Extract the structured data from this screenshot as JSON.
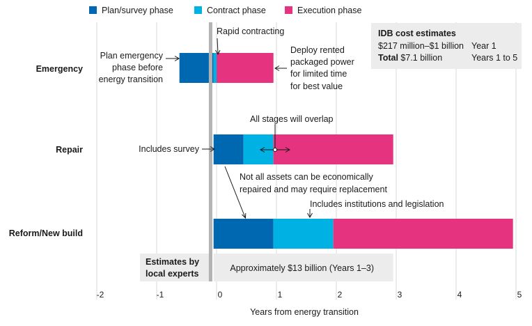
{
  "chart_data": {
    "type": "bar",
    "orientation": "horizontal",
    "stacked": "range",
    "xlabel": "Years from energy transition",
    "xlim": [
      -2.2,
      5.1
    ],
    "ticks": [
      "-2",
      "-1",
      "0",
      "1",
      "2",
      "3",
      "4",
      "5"
    ],
    "grid": true,
    "legend_position": "top",
    "categories": [
      "Emergency",
      "Repair",
      "Reform/New build"
    ],
    "series": [
      {
        "name": "Plan/survey phase",
        "color": "#0067b1",
        "ranges": [
          [
            -0.62,
            -0.05
          ],
          [
            -0.05,
            0.45
          ],
          [
            -0.05,
            0.95
          ]
        ]
      },
      {
        "name": "Contract phase",
        "color": "#00b2e3",
        "ranges": [
          [
            -0.05,
            0.0
          ],
          [
            0.45,
            0.95
          ],
          [
            0.95,
            1.95
          ]
        ]
      },
      {
        "name": "Execution phase",
        "color": "#e6337f",
        "ranges": [
          [
            0.0,
            0.95
          ],
          [
            0.95,
            2.95
          ],
          [
            1.95,
            4.95
          ]
        ]
      }
    ],
    "transition_line_x": -0.1,
    "annotations": {
      "rapid_contracting": "Rapid contracting",
      "plan_emergency": [
        "Plan emergency",
        "phase before",
        "energy transition"
      ],
      "deploy_power": [
        "Deploy rented",
        "packaged power",
        "for limited time",
        "for best value"
      ],
      "all_overlap": "All stages will overlap",
      "includes_survey": "Includes survey",
      "not_all_assets": [
        "Not all assets can be economically",
        "repaired and may require replacement"
      ],
      "institutions": "Includes institutions and legislation"
    },
    "idb_box": {
      "title": "IDB cost estimates",
      "row1_value": "$217 million–$1 billion",
      "row1_period": "Year 1",
      "row2_label": "Total",
      "row2_value": " $7.1 billion",
      "row2_period": "Years 1 to 5"
    },
    "local_experts": {
      "label": [
        "Estimates by",
        "local experts"
      ],
      "value": "Approximately $13 billion (Years 1–3)",
      "range": [
        -0.05,
        2.95
      ]
    },
    "colors": {
      "grid": "#d9d9d9",
      "transition_line": "#b3b3b3",
      "box_fill": "#ececec"
    }
  }
}
